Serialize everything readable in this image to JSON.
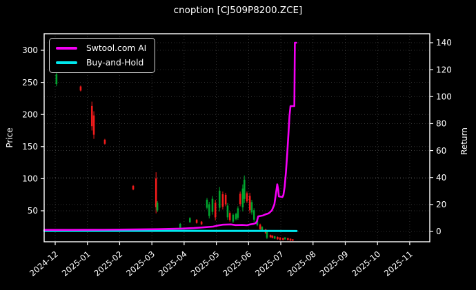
{
  "title": "cnoption [CJ509P8200.ZCE]",
  "axes": {
    "left_label": "Price",
    "right_label": "Return"
  },
  "legend": {
    "position": "upper left",
    "items": [
      {
        "label": "Swtool.com AI",
        "color": "#f500f5"
      },
      {
        "label": "Buy-and-Hold",
        "color": "#00e8ee"
      }
    ]
  },
  "colors": {
    "background": "#000000",
    "text": "#ffffff",
    "spine": "#ffffff",
    "grid": "#787878",
    "candle_up": "#00a42e",
    "candle_down": "#f21b1b",
    "ai_line": "#f500f5",
    "bh_line": "#00e8ee"
  },
  "chart_data": {
    "type": "candlestick+line",
    "title": "cnoption [CJ509P8200.ZCE]",
    "xlabel": "",
    "grid": true,
    "legend_position": "upper left",
    "x_axis": {
      "unit": "month",
      "tick_labels": [
        "2024-12",
        "2025-01",
        "2025-02",
        "2025-03",
        "2025-04",
        "2025-05",
        "2025-06",
        "2025-07",
        "2025-08",
        "2025-09",
        "2025-10",
        "2025-11"
      ]
    },
    "price_axis": {
      "label": "Price",
      "ticks": [
        50,
        100,
        150,
        200,
        250,
        300
      ],
      "approx_range": [
        2,
        326
      ]
    },
    "return_axis": {
      "label": "Return",
      "ticks": [
        0,
        20,
        40,
        60,
        80,
        100,
        120,
        140
      ],
      "approx_range": [
        -8,
        147
      ]
    },
    "series": [
      {
        "name": "Swtool.com AI",
        "axis": "return",
        "type": "line",
        "color": "#f500f5",
        "points_note": "x = months after 2024-12 tick, y = Return",
        "points": [
          [
            -0.34,
            1.2
          ],
          [
            0.5,
            1.2
          ],
          [
            1.5,
            1.3
          ],
          [
            2.5,
            1.5
          ],
          [
            3.2,
            1.7
          ],
          [
            3.9,
            2.1
          ],
          [
            4.3,
            2.5
          ],
          [
            4.6,
            3.0
          ],
          [
            4.9,
            3.6
          ],
          [
            5.05,
            4.4
          ],
          [
            5.2,
            5.0
          ],
          [
            5.45,
            5.2
          ],
          [
            5.6,
            4.7
          ],
          [
            5.8,
            4.8
          ],
          [
            5.95,
            4.6
          ],
          [
            6.05,
            5.2
          ],
          [
            6.15,
            5.6
          ],
          [
            6.22,
            6.2
          ],
          [
            6.26,
            7.6
          ],
          [
            6.3,
            11.2
          ],
          [
            6.44,
            11.8
          ],
          [
            6.52,
            12.6
          ],
          [
            6.62,
            13.4
          ],
          [
            6.72,
            15.5
          ],
          [
            6.8,
            20
          ],
          [
            6.85,
            28
          ],
          [
            6.89,
            35
          ],
          [
            6.92,
            31
          ],
          [
            6.94,
            26
          ],
          [
            7.05,
            25.5
          ],
          [
            7.08,
            27
          ],
          [
            7.12,
            33
          ],
          [
            7.16,
            44
          ],
          [
            7.2,
            58
          ],
          [
            7.24,
            74
          ],
          [
            7.27,
            86
          ],
          [
            7.3,
            93
          ],
          [
            7.42,
            93
          ],
          [
            7.435,
            140
          ],
          [
            7.48,
            140
          ]
        ]
      },
      {
        "name": "Buy-and-Hold",
        "axis": "return",
        "type": "line",
        "color": "#00e8ee",
        "points_note": "x = months after 2024-12 tick, y = Return",
        "points": [
          [
            -0.34,
            0.45
          ],
          [
            3.0,
            0.45
          ],
          [
            5.0,
            0.4
          ],
          [
            6.5,
            0.35
          ],
          [
            7.49,
            0.3
          ]
        ]
      }
    ],
    "candles_note": "[t months after 2024-12, low, high, up|down] on Price axis",
    "candles": [
      [
        0.04,
        244,
        266,
        "up"
      ],
      [
        0.79,
        236,
        245,
        "down"
      ],
      [
        1.14,
        175,
        220,
        "down"
      ],
      [
        1.2,
        162,
        205,
        "down"
      ],
      [
        1.54,
        153,
        162,
        "down"
      ],
      [
        2.42,
        82,
        90,
        "down"
      ],
      [
        3.13,
        46,
        110,
        "down"
      ],
      [
        3.17,
        48,
        65,
        "up"
      ],
      [
        3.88,
        22,
        31,
        "up"
      ],
      [
        4.18,
        31,
        40,
        "up"
      ],
      [
        4.39,
        30,
        37,
        "down"
      ],
      [
        4.54,
        28,
        34,
        "down"
      ],
      [
        4.71,
        52,
        70,
        "up"
      ],
      [
        4.78,
        38,
        64,
        "up"
      ],
      [
        4.88,
        44,
        73,
        "up"
      ],
      [
        4.97,
        35,
        67,
        "down"
      ],
      [
        5.1,
        49,
        87,
        "up"
      ],
      [
        5.2,
        52,
        80,
        "down"
      ],
      [
        5.29,
        57,
        78,
        "down"
      ],
      [
        5.35,
        36,
        62,
        "up"
      ],
      [
        5.42,
        33,
        49,
        "down"
      ],
      [
        5.52,
        31,
        46,
        "up"
      ],
      [
        5.61,
        35,
        47,
        "up"
      ],
      [
        5.67,
        36,
        57,
        "up"
      ],
      [
        5.74,
        57,
        80,
        "down"
      ],
      [
        5.82,
        49,
        91,
        "up"
      ],
      [
        5.87,
        62,
        105,
        "up"
      ],
      [
        5.95,
        62,
        80,
        "down"
      ],
      [
        6.04,
        46,
        78,
        "down"
      ],
      [
        6.1,
        44,
        67,
        "up"
      ],
      [
        6.17,
        33,
        54,
        "up"
      ],
      [
        6.27,
        26,
        37,
        "up"
      ],
      [
        6.36,
        20,
        30,
        "down"
      ],
      [
        6.42,
        18,
        26,
        "up"
      ],
      [
        6.53,
        14,
        22,
        "down"
      ],
      [
        6.57,
        6,
        20,
        "up"
      ],
      [
        6.68,
        8,
        13,
        "down"
      ],
      [
        6.74,
        7,
        12,
        "down"
      ],
      [
        6.81,
        6,
        11,
        "up"
      ],
      [
        6.9,
        5,
        10,
        "down"
      ],
      [
        6.98,
        4,
        9,
        "down"
      ],
      [
        7.07,
        4,
        8,
        "down"
      ],
      [
        7.13,
        5,
        9,
        "up"
      ],
      [
        7.22,
        4,
        8,
        "down"
      ],
      [
        7.3,
        3,
        7,
        "down"
      ],
      [
        7.37,
        3,
        6,
        "down"
      ]
    ]
  }
}
